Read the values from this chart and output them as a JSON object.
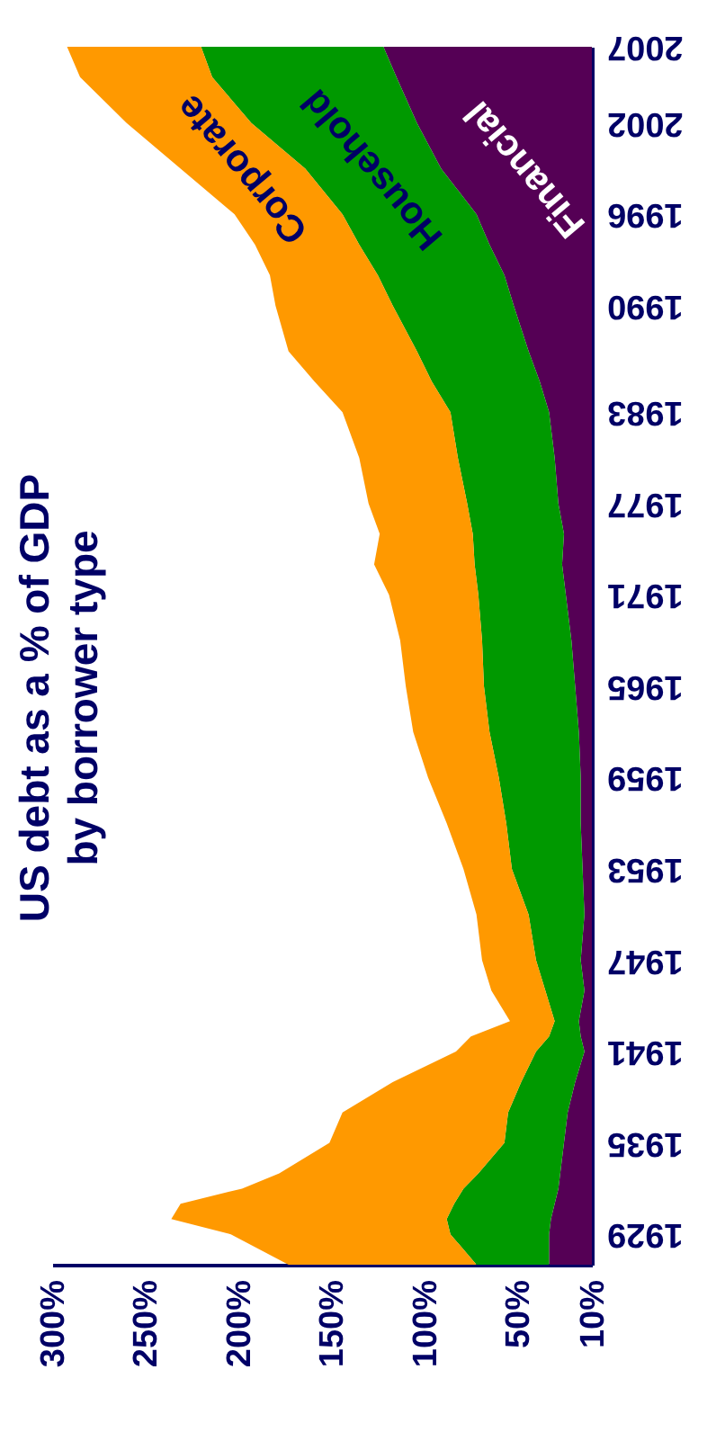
{
  "chart_data": {
    "type": "area",
    "title": "US debt as a % of GDP by borrower type",
    "orientation": "horizontal",
    "stacked": true,
    "x": [
      1927,
      1929,
      1930,
      1931,
      1932,
      1933,
      1935,
      1937,
      1939,
      1941,
      1942,
      1943,
      1945,
      1947,
      1950,
      1953,
      1956,
      1959,
      1962,
      1965,
      1968,
      1971,
      1973,
      1975,
      1977,
      1980,
      1983,
      1985,
      1987,
      1990,
      1992,
      1994,
      1996,
      1999,
      2002,
      2005,
      2007
    ],
    "series": [
      {
        "name": "Financial",
        "color": "#550055",
        "values": [
          33,
          33,
          32,
          30,
          28,
          27,
          25,
          23,
          19,
          14,
          16,
          17,
          14,
          16,
          14,
          15,
          16,
          16,
          17,
          19,
          21,
          24,
          26,
          25,
          28,
          30,
          33,
          38,
          44,
          52,
          57,
          65,
          72,
          91,
          104,
          115,
          122
        ]
      },
      {
        "name": "Household",
        "color": "#009900",
        "values": [
          39,
          53,
          56,
          54,
          51,
          44,
          32,
          32,
          29,
          26,
          17,
          13,
          21,
          24,
          30,
          38,
          40,
          44,
          48,
          49,
          48,
          47,
          47,
          49,
          49,
          52,
          53,
          58,
          60,
          65,
          68,
          70,
          72,
          73,
          89,
          99,
          98
        ]
      },
      {
        "name": "Corporate",
        "color": "#ff9900",
        "values": [
          101,
          118,
          148,
          147,
          119,
          107,
          94,
          89,
          69,
          43,
          42,
          24,
          29,
          29,
          28,
          26,
          32,
          38,
          41,
          42,
          44,
          48,
          54,
          50,
          53,
          53,
          58,
          63,
          69,
          63,
          58,
          56,
          58,
          67,
          67,
          71,
          72
        ]
      }
    ],
    "xlim": [
      300,
      10
    ],
    "xticks": [
      {
        "value": 300,
        "label": "300%"
      },
      {
        "value": 250,
        "label": "250%"
      },
      {
        "value": 200,
        "label": "200%"
      },
      {
        "value": 150,
        "label": "150%"
      },
      {
        "value": 100,
        "label": "100%"
      },
      {
        "value": 50,
        "label": "50%"
      },
      {
        "value": 10,
        "label": "10%"
      }
    ],
    "ylim": [
      1927,
      2007
    ],
    "yticks": [
      1929,
      1935,
      1941,
      1947,
      1953,
      1959,
      1965,
      1971,
      1977,
      1983,
      1990,
      1996,
      2002,
      2007
    ],
    "grid": false
  }
}
